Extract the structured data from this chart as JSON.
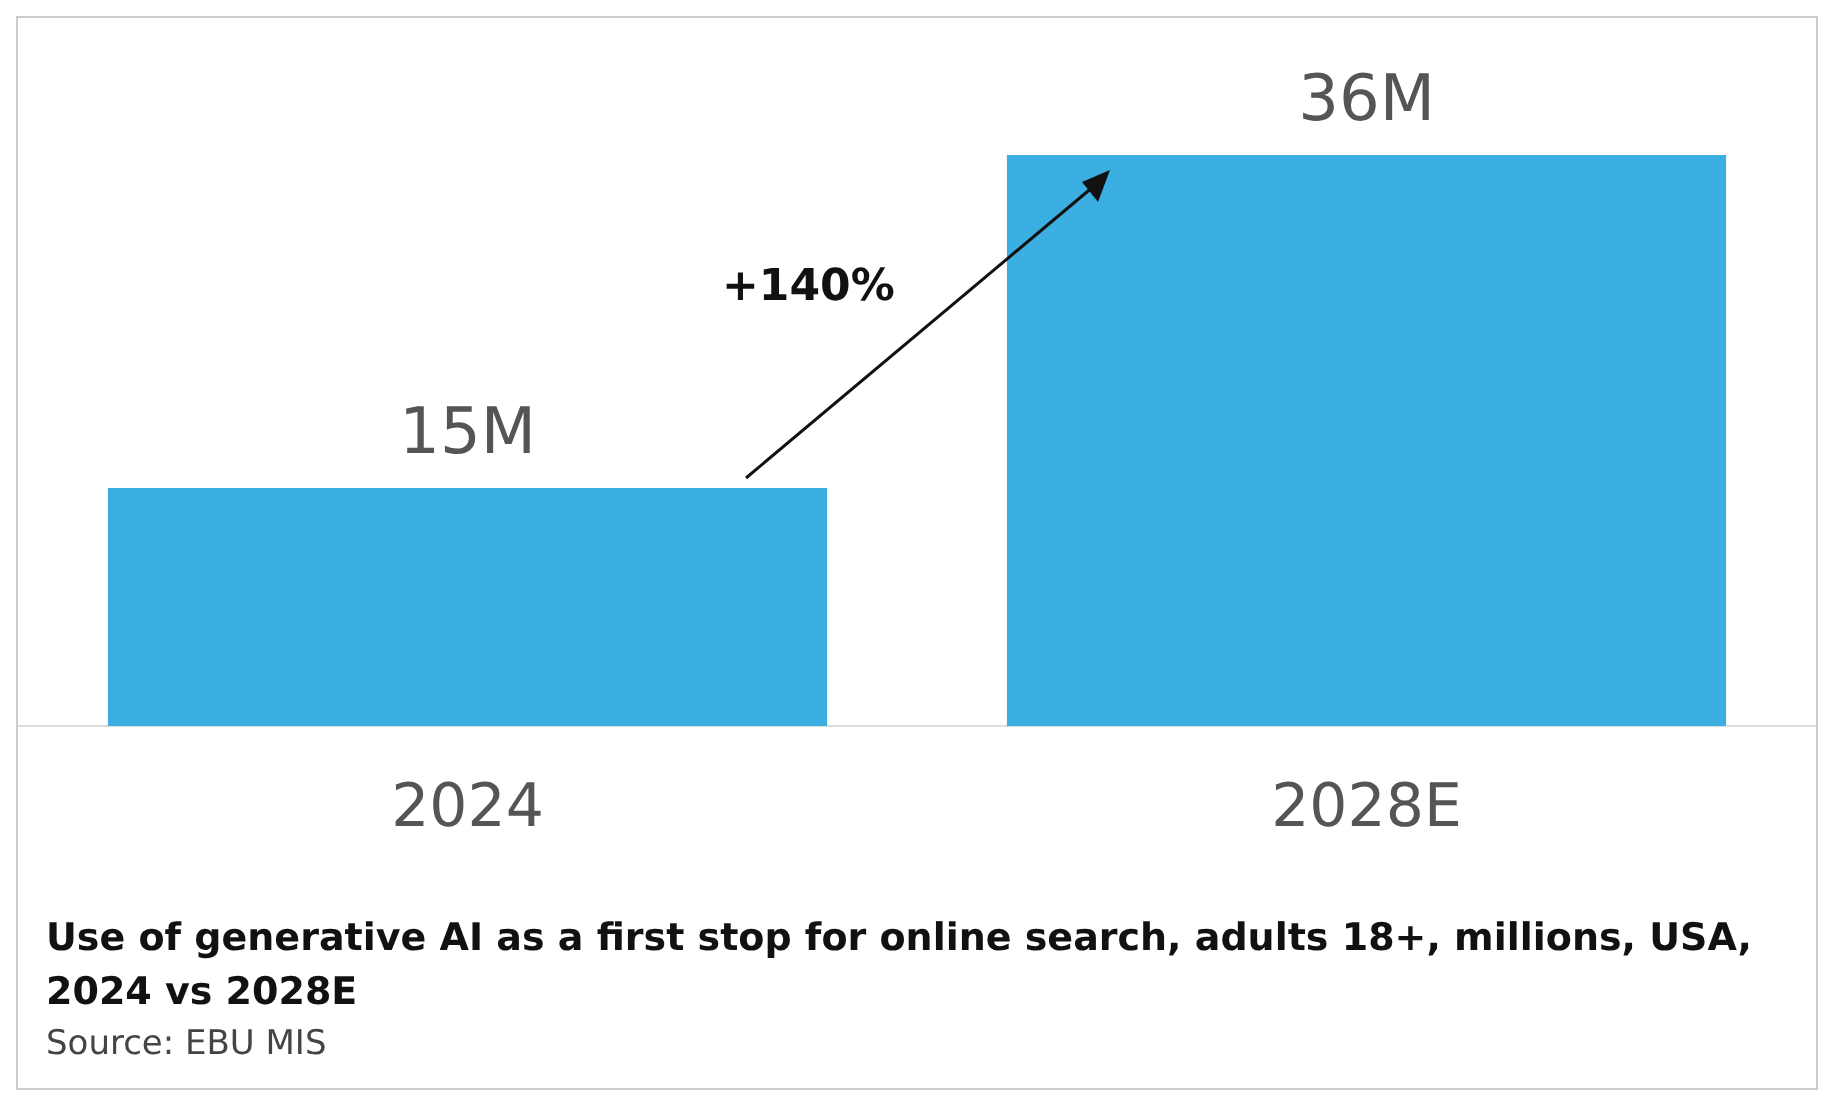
{
  "chart_data": {
    "type": "bar",
    "title": "Use of generative AI as a first stop for online search, adults 18+, millions, USA, 2024 vs 2028E",
    "categories": [
      "2024",
      "2028E"
    ],
    "values": [
      15,
      36
    ],
    "value_labels": [
      "15M",
      "36M"
    ],
    "color": "#3baee2",
    "annotations": [
      "+140%",
      "Source: EBU MIS"
    ]
  }
}
